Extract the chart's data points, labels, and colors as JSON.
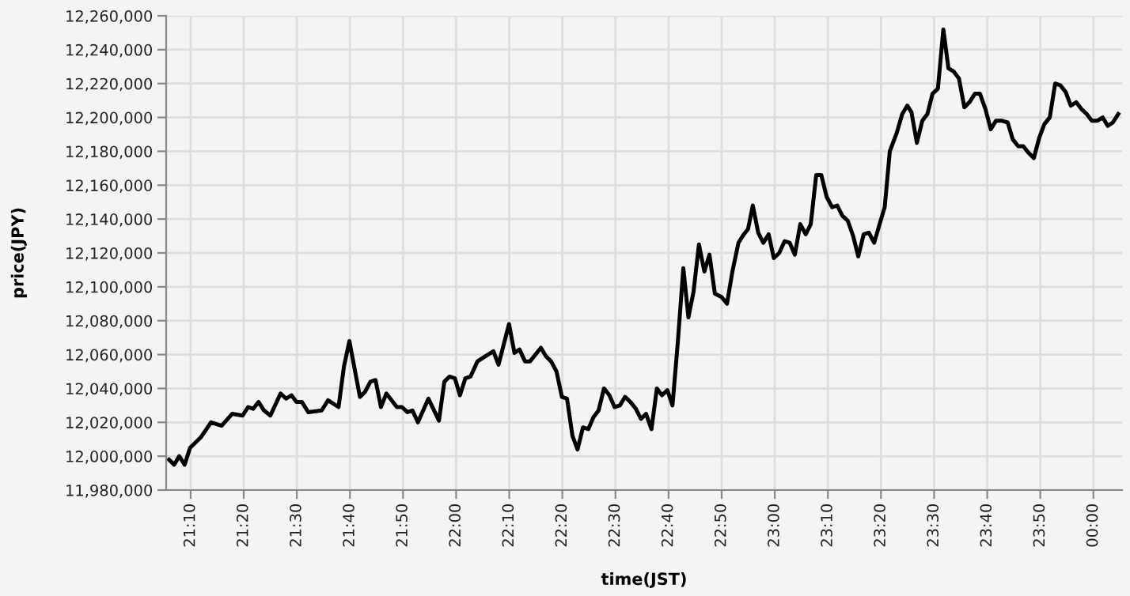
{
  "chart_data": {
    "type": "line",
    "xlabel": "time(JST)",
    "ylabel": "price(JPY)",
    "x": [
      21.099,
      21.115,
      21.131,
      21.148,
      21.165,
      21.198,
      21.231,
      21.264,
      21.297,
      21.33,
      21.347,
      21.363,
      21.38,
      21.397,
      21.417,
      21.449,
      21.466,
      21.483,
      21.499,
      21.516,
      21.536,
      21.578,
      21.598,
      21.631,
      21.648,
      21.665,
      21.698,
      21.714,
      21.731,
      21.747,
      21.764,
      21.781,
      21.814,
      21.83,
      21.847,
      21.863,
      21.88,
      21.913,
      21.946,
      21.963,
      21.979,
      21.996,
      22.012,
      22.029,
      22.045,
      22.067,
      22.1,
      22.117,
      22.133,
      22.166,
      22.183,
      22.199,
      22.216,
      22.232,
      22.266,
      22.282,
      22.298,
      22.315,
      22.332,
      22.348,
      22.365,
      22.381,
      22.398,
      22.415,
      22.431,
      22.447,
      22.464,
      22.481,
      22.497,
      22.514,
      22.53,
      22.547,
      22.564,
      22.58,
      22.596,
      22.613,
      22.63,
      22.646,
      22.663,
      22.679,
      22.696,
      22.713,
      22.729,
      22.745,
      22.762,
      22.779,
      22.795,
      22.812,
      22.833,
      22.85,
      22.867,
      22.886,
      22.903,
      22.916,
      22.931,
      22.948,
      22.964,
      22.981,
      22.997,
      23.014,
      23.031,
      23.047,
      23.063,
      23.08,
      23.097,
      23.113,
      23.13,
      23.146,
      23.163,
      23.18,
      23.196,
      23.212,
      23.229,
      23.246,
      23.262,
      23.279,
      23.295,
      23.312,
      23.329,
      23.345,
      23.361,
      23.383,
      23.4,
      23.416,
      23.429,
      23.446,
      23.463,
      23.479,
      23.495,
      23.512,
      23.529,
      23.545,
      23.562,
      23.578,
      23.595,
      23.611,
      23.628,
      23.644,
      23.661,
      23.678,
      23.694,
      23.714,
      23.731,
      23.747,
      23.764,
      23.78,
      23.797,
      23.813,
      23.83,
      23.846,
      23.863,
      23.88,
      23.896,
      23.913,
      23.929,
      23.946,
      23.962,
      23.979,
      23.995,
      24.012,
      24.029,
      24.045,
      24.061,
      24.078
    ],
    "series": [
      {
        "color": "#000000",
        "values": [
          11998000,
          11995000,
          12000000,
          11995000,
          12005000,
          12011000,
          12020000,
          12018000,
          12025000,
          12024000,
          12029000,
          12028000,
          12032000,
          12027000,
          12024000,
          12037000,
          12034000,
          12036000,
          12032000,
          12032000,
          12026000,
          12027000,
          12033000,
          12029000,
          12053000,
          12068000,
          12035000,
          12038000,
          12044000,
          12045000,
          12029000,
          12037000,
          12029000,
          12029000,
          12026000,
          12027000,
          12020000,
          12034000,
          12021000,
          12044000,
          12047000,
          12046000,
          12036000,
          12046000,
          12047000,
          12056000,
          12060000,
          12062000,
          12054000,
          12078000,
          12061000,
          12063000,
          12056000,
          12056000,
          12064000,
          12059000,
          12056000,
          12050000,
          12035000,
          12034000,
          12012000,
          12004000,
          12017000,
          12016000,
          12023000,
          12027000,
          12040000,
          12036000,
          12029000,
          12030000,
          12035000,
          12032000,
          12028000,
          12022000,
          12025000,
          12016000,
          12040000,
          12036000,
          12039000,
          12030000,
          12068000,
          12111000,
          12082000,
          12097000,
          12125000,
          12109000,
          12119000,
          12096000,
          12094000,
          12090000,
          12109000,
          12126000,
          12131000,
          12134000,
          12148000,
          12132000,
          12126000,
          12131000,
          12117000,
          12120000,
          12127000,
          12126000,
          12119000,
          12137000,
          12131000,
          12137000,
          12166000,
          12166000,
          12153000,
          12147000,
          12148000,
          12142000,
          12139000,
          12130000,
          12118000,
          12131000,
          12132000,
          12126000,
          12137000,
          12147000,
          12180000,
          12191000,
          12202000,
          12207000,
          12203000,
          12185000,
          12198000,
          12202000,
          12214000,
          12217000,
          12252000,
          12229000,
          12227000,
          12223000,
          12206000,
          12209000,
          12214000,
          12214000,
          12205000,
          12193000,
          12198000,
          12198000,
          12197000,
          12187000,
          12183000,
          12183000,
          12179000,
          12176000,
          12188000,
          12196000,
          12200000,
          12220000,
          12219000,
          12215000,
          12207000,
          12209000,
          12205000,
          12202000,
          12198000,
          12198000,
          12200000,
          12195000,
          12197000,
          12202000
        ]
      }
    ],
    "xlim": [
      21.09,
      24.09
    ],
    "xticks": [
      {
        "value": 21.1667,
        "label": "21:10"
      },
      {
        "value": 21.3333,
        "label": "21:20"
      },
      {
        "value": 21.5,
        "label": "21:30"
      },
      {
        "value": 21.6667,
        "label": "21:40"
      },
      {
        "value": 21.8333,
        "label": "21:50"
      },
      {
        "value": 22,
        "label": "22:00"
      },
      {
        "value": 22.1667,
        "label": "22:10"
      },
      {
        "value": 22.3333,
        "label": "22:20"
      },
      {
        "value": 22.5,
        "label": "22:30"
      },
      {
        "value": 22.6667,
        "label": "22:40"
      },
      {
        "value": 22.8333,
        "label": "22:50"
      },
      {
        "value": 23,
        "label": "23:00"
      },
      {
        "value": 23.1667,
        "label": "23:10"
      },
      {
        "value": 23.3333,
        "label": "23:20"
      },
      {
        "value": 23.5,
        "label": "23:30"
      },
      {
        "value": 23.6667,
        "label": "23:40"
      },
      {
        "value": 23.8333,
        "label": "23:50"
      },
      {
        "value": 24,
        "label": "00:00"
      }
    ],
    "ylim": [
      11980000,
      12260000
    ],
    "yticks": [
      {
        "value": 11980000,
        "label": "11,980,000"
      },
      {
        "value": 12000000,
        "label": "12,000,000"
      },
      {
        "value": 12020000,
        "label": "12,020,000"
      },
      {
        "value": 12040000,
        "label": "12,040,000"
      },
      {
        "value": 12060000,
        "label": "12,060,000"
      },
      {
        "value": 12080000,
        "label": "12,080,000"
      },
      {
        "value": 12100000,
        "label": "12,100,000"
      },
      {
        "value": 12120000,
        "label": "12,120,000"
      },
      {
        "value": 12140000,
        "label": "12,140,000"
      },
      {
        "value": 12160000,
        "label": "12,160,000"
      },
      {
        "value": 12180000,
        "label": "12,180,000"
      },
      {
        "value": 12200000,
        "label": "12,200,000"
      },
      {
        "value": 12220000,
        "label": "12,220,000"
      },
      {
        "value": 12240000,
        "label": "12,240,000"
      },
      {
        "value": 12260000,
        "label": "12,260,000"
      }
    ],
    "grid": true,
    "marker": "none",
    "line_style": "solid"
  }
}
